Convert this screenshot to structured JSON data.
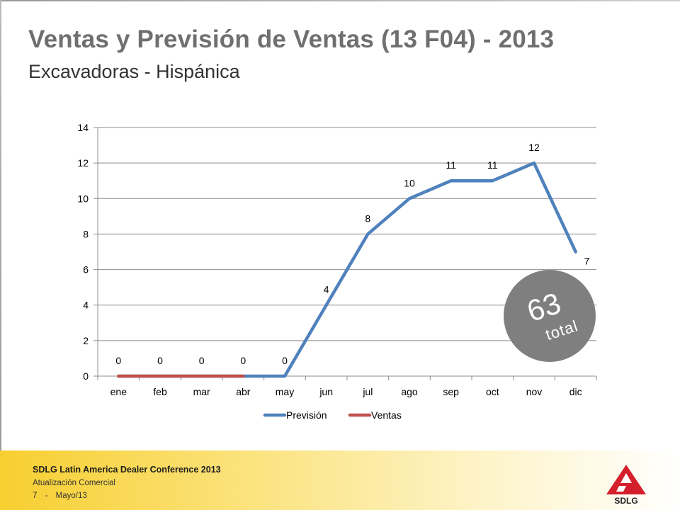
{
  "header": {
    "title": "Ventas y Previsión de Ventas (13 F04) - 2013",
    "subtitle": "Excavadoras - Hispánica"
  },
  "badge": {
    "value": "63",
    "label": "total",
    "color": "#7f7f7f"
  },
  "footer": {
    "conference": "SDLG Latin America Dealer Conference 2013",
    "section": "Atualización Comercial",
    "page_number": "7",
    "separator": "-",
    "date": "Mayo/13",
    "band_color": "#f7cf30"
  },
  "logo": {
    "text": "SDLG",
    "color": "#d4202c"
  },
  "chart_data": {
    "type": "line",
    "categories": [
      "ene",
      "feb",
      "mar",
      "abr",
      "may",
      "jun",
      "jul",
      "ago",
      "sep",
      "oct",
      "nov",
      "dic"
    ],
    "ylim": [
      0,
      14
    ],
    "yticks": [
      0,
      2,
      4,
      6,
      8,
      10,
      12,
      14
    ],
    "grid": true,
    "legend": "bottom",
    "series": [
      {
        "name": "Previsión",
        "color": "#4f81bd",
        "values": [
          0,
          0,
          0,
          0,
          0,
          4,
          8,
          10,
          11,
          11,
          12,
          7
        ],
        "labels": [
          "0",
          "0",
          "0",
          "0",
          "0",
          "4",
          "8",
          "10",
          "11",
          "11",
          "12",
          "7"
        ]
      },
      {
        "name": "Ventas",
        "color": "#c0504d",
        "values": [
          0,
          0,
          0,
          0,
          null,
          null,
          null,
          null,
          null,
          null,
          null,
          null
        ]
      }
    ]
  }
}
